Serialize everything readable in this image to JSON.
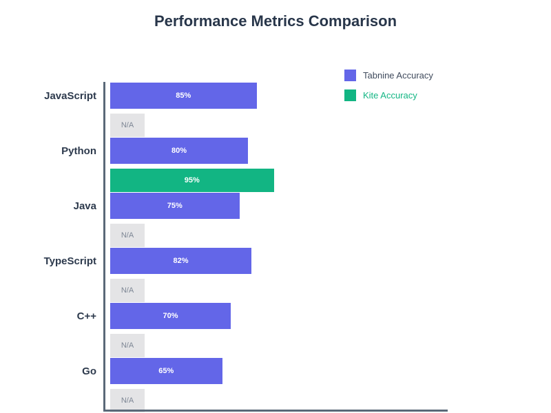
{
  "chart_data": {
    "type": "bar",
    "orientation": "horizontal",
    "title": "Performance Metrics Comparison",
    "categories": [
      "JavaScript",
      "Python",
      "Java",
      "TypeScript",
      "C++",
      "Go"
    ],
    "series": [
      {
        "name": "Tabnine Accuracy",
        "color": "#6366e8",
        "values": [
          85,
          80,
          75,
          82,
          70,
          65
        ],
        "labels": [
          "85%",
          "80%",
          "75%",
          "82%",
          "70%",
          "65%"
        ]
      },
      {
        "name": "Kite Accuracy",
        "color": "#12b583",
        "values": [
          null,
          95,
          null,
          null,
          null,
          null
        ],
        "labels": [
          "N/A",
          "95%",
          "N/A",
          "N/A",
          "N/A",
          "N/A"
        ]
      }
    ],
    "null_label": "N/A",
    "value_suffix": "%",
    "xlim": [
      0,
      100
    ],
    "grid": false,
    "x_axis_tick_labels": [],
    "legend_position": "top-right",
    "colors": {
      "na_bar": "#e4e4e6",
      "na_text": "#7d8694",
      "axis": "#5a6878",
      "title_text": "#28364a",
      "category_text": "#2d3a4d",
      "value_text": "#ffffff",
      "legend_text": "#3f4a5c"
    }
  }
}
